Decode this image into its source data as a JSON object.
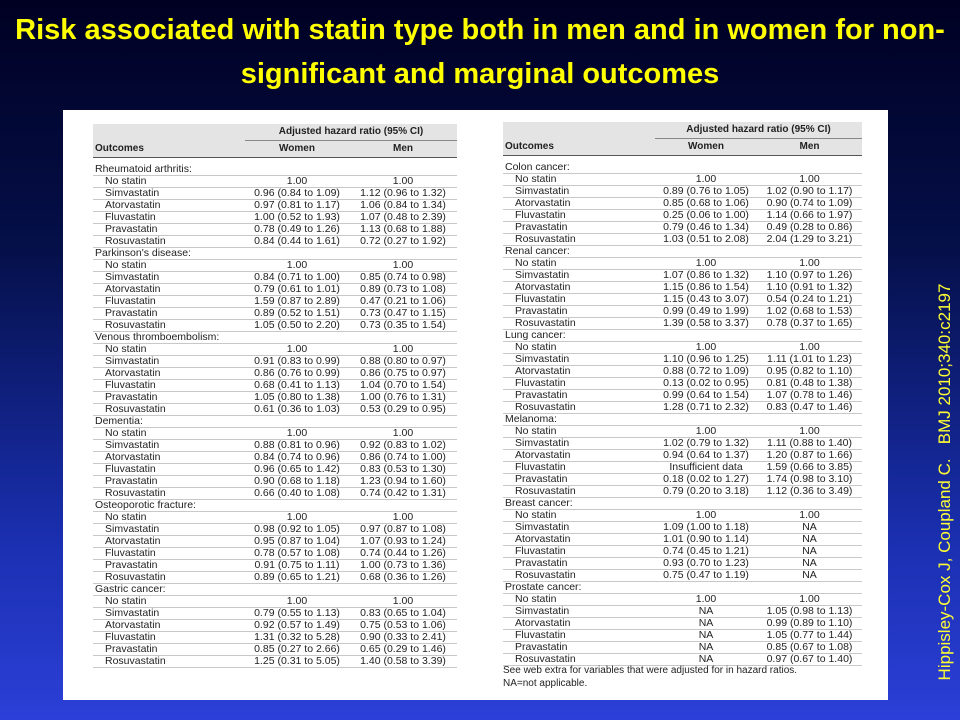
{
  "title": "Risk associated with statin type both in men and in women for non-significant and marginal outcomes",
  "citation": "Hippisley-Cox J, Coupland C.   BMJ 2010;340:c2197",
  "tables": [
    {
      "group_header": "Adjusted hazard ratio (95% CI)",
      "columns": [
        "Outcomes",
        "Women",
        "Men"
      ],
      "sections": [
        {
          "heading": "Rheumatoid arthritis:",
          "rows": [
            [
              "No statin",
              "1.00",
              "1.00"
            ],
            [
              "Simvastatin",
              "0.96 (0.84 to 1.09)",
              "1.12 (0.96 to 1.32)"
            ],
            [
              "Atorvastatin",
              "0.97 (0.81 to 1.17)",
              "1.06 (0.84 to 1.34)"
            ],
            [
              "Fluvastatin",
              "1.00 (0.52 to 1.93)",
              "1.07 (0.48 to 2.39)"
            ],
            [
              "Pravastatin",
              "0.78 (0.49 to 1.26)",
              "1.13 (0.68 to 1.88)"
            ],
            [
              "Rosuvastatin",
              "0.84 (0.44 to 1.61)",
              "0.72 (0.27 to 1.92)"
            ]
          ]
        },
        {
          "heading": "Parkinson's disease:",
          "rows": [
            [
              "No statin",
              "1.00",
              "1.00"
            ],
            [
              "Simvastatin",
              "0.84 (0.71 to 1.00)",
              "0.85 (0.74 to 0.98)"
            ],
            [
              "Atorvastatin",
              "0.79 (0.61 to 1.01)",
              "0.89 (0.73 to 1.08)"
            ],
            [
              "Fluvastatin",
              "1.59 (0.87 to 2.89)",
              "0.47 (0.21 to 1.06)"
            ],
            [
              "Pravastatin",
              "0.89 (0.52 to 1.51)",
              "0.73 (0.47 to 1.15)"
            ],
            [
              "Rosuvastatin",
              "1.05 (0.50 to 2.20)",
              "0.73 (0.35 to 1.54)"
            ]
          ]
        },
        {
          "heading": "Venous thromboembolism:",
          "rows": [
            [
              "No statin",
              "1.00",
              "1.00"
            ],
            [
              "Simvastatin",
              "0.91 (0.83 to 0.99)",
              "0.88 (0.80 to 0.97)"
            ],
            [
              "Atorvastatin",
              "0.86 (0.76 to 0.99)",
              "0.86 (0.75 to 0.97)"
            ],
            [
              "Fluvastatin",
              "0.68 (0.41 to 1.13)",
              "1.04 (0.70 to 1.54)"
            ],
            [
              "Pravastatin",
              "1.05 (0.80 to 1.38)",
              "1.00 (0.76 to 1.31)"
            ],
            [
              "Rosuvastatin",
              "0.61 (0.36 to 1.03)",
              "0.53 (0.29 to 0.95)"
            ]
          ]
        },
        {
          "heading": "Dementia:",
          "rows": [
            [
              "No statin",
              "1.00",
              "1.00"
            ],
            [
              "Simvastatin",
              "0.88 (0.81 to 0.96)",
              "0.92 (0.83 to 1.02)"
            ],
            [
              "Atorvastatin",
              "0.84 (0.74 to 0.96)",
              "0.86 (0.74 to 1.00)"
            ],
            [
              "Fluvastatin",
              "0.96 (0.65 to 1.42)",
              "0.83 (0.53 to 1.30)"
            ],
            [
              "Pravastatin",
              "0.90 (0.68 to 1.18)",
              "1.23 (0.94 to 1.60)"
            ],
            [
              "Rosuvastatin",
              "0.66 (0.40 to 1.08)",
              "0.74 (0.42 to 1.31)"
            ]
          ]
        },
        {
          "heading": "Osteoporotic fracture:",
          "rows": [
            [
              "No statin",
              "1.00",
              "1.00"
            ],
            [
              "Simvastatin",
              "0.98 (0.92 to 1.05)",
              "0.97 (0.87 to 1.08)"
            ],
            [
              "Atorvastatin",
              "0.95 (0.87 to 1.04)",
              "1.07 (0.93 to 1.24)"
            ],
            [
              "Fluvastatin",
              "0.78 (0.57 to 1.08)",
              "0.74 (0.44 to 1.26)"
            ],
            [
              "Pravastatin",
              "0.91 (0.75 to 1.11)",
              "1.00 (0.73 to 1.36)"
            ],
            [
              "Rosuvastatin",
              "0.89 (0.65 to 1.21)",
              "0.68 (0.36 to 1.26)"
            ]
          ]
        },
        {
          "heading": "Gastric cancer:",
          "rows": [
            [
              "No statin",
              "1.00",
              "1.00"
            ],
            [
              "Simvastatin",
              "0.79 (0.55 to 1.13)",
              "0.83 (0.65 to 1.04)"
            ],
            [
              "Atorvastatin",
              "0.92 (0.57 to 1.49)",
              "0.75 (0.53 to 1.06)"
            ],
            [
              "Fluvastatin",
              "1.31 (0.32 to 5.28)",
              "0.90 (0.33 to 2.41)"
            ],
            [
              "Pravastatin",
              "0.85 (0.27 to 2.66)",
              "0.65 (0.29 to 1.46)"
            ],
            [
              "Rosuvastatin",
              "1.25 (0.31 to 5.05)",
              "1.40 (0.58 to 3.39)"
            ]
          ]
        }
      ]
    },
    {
      "group_header": "Adjusted hazard ratio (95% CI)",
      "columns": [
        "Outcomes",
        "Women",
        "Men"
      ],
      "sections": [
        {
          "heading": "Colon cancer:",
          "rows": [
            [
              "No statin",
              "1.00",
              "1.00"
            ],
            [
              "Simvastatin",
              "0.89 (0.76 to 1.05)",
              "1.02 (0.90 to 1.17)"
            ],
            [
              "Atorvastatin",
              "0.85 (0.68 to 1.06)",
              "0.90 (0.74 to 1.09)"
            ],
            [
              "Fluvastatin",
              "0.25 (0.06 to 1.00)",
              "1.14 (0.66 to 1.97)"
            ],
            [
              "Pravastatin",
              "0.79 (0.46 to 1.34)",
              "0.49 (0.28 to 0.86)"
            ],
            [
              "Rosuvastatin",
              "1.03 (0.51 to 2.08)",
              "2.04 (1.29 to 3.21)"
            ]
          ]
        },
        {
          "heading": "Renal cancer:",
          "rows": [
            [
              "No statin",
              "1.00",
              "1.00"
            ],
            [
              "Simvastatin",
              "1.07 (0.86 to 1.32)",
              "1.10 (0.97 to 1.26)"
            ],
            [
              "Atorvastatin",
              "1.15 (0.86 to 1.54)",
              "1.10 (0.91 to 1.32)"
            ],
            [
              "Fluvastatin",
              "1.15 (0.43 to 3.07)",
              "0.54 (0.24 to 1.21)"
            ],
            [
              "Pravastatin",
              "0.99 (0.49 to 1.99)",
              "1.02 (0.68 to 1.53)"
            ],
            [
              "Rosuvastatin",
              "1.39 (0.58 to 3.37)",
              "0.78 (0.37 to 1.65)"
            ]
          ]
        },
        {
          "heading": "Lung cancer:",
          "rows": [
            [
              "No statin",
              "1.00",
              "1.00"
            ],
            [
              "Simvastatin",
              "1.10 (0.96 to 1.25)",
              "1.11 (1.01 to 1.23)"
            ],
            [
              "Atorvastatin",
              "0.88 (0.72 to 1.09)",
              "0.95 (0.82 to 1.10)"
            ],
            [
              "Fluvastatin",
              "0.13 (0.02 to 0.95)",
              "0.81 (0.48 to 1.38)"
            ],
            [
              "Pravastatin",
              "0.99 (0.64 to 1.54)",
              "1.07 (0.78 to 1.46)"
            ],
            [
              "Rosuvastatin",
              "1.28 (0.71 to 2.32)",
              "0.83 (0.47 to 1.46)"
            ]
          ]
        },
        {
          "heading": "Melanoma:",
          "rows": [
            [
              "No statin",
              "1.00",
              "1.00"
            ],
            [
              "Simvastatin",
              "1.02 (0.79 to 1.32)",
              "1.11 (0.88 to 1.40)"
            ],
            [
              "Atorvastatin",
              "0.94 (0.64 to 1.37)",
              "1.20 (0.87 to 1.66)"
            ],
            [
              "Fluvastatin",
              "Insufficient data",
              "1.59 (0.66 to 3.85)"
            ],
            [
              "Pravastatin",
              "0.18 (0.02 to 1.27)",
              "1.74 (0.98 to 3.10)"
            ],
            [
              "Rosuvastatin",
              "0.79 (0.20 to 3.18)",
              "1.12 (0.36 to 3.49)"
            ]
          ]
        },
        {
          "heading": "Breast cancer:",
          "rows": [
            [
              "No statin",
              "1.00",
              "1.00"
            ],
            [
              "Simvastatin",
              "1.09 (1.00 to 1.18)",
              "NA"
            ],
            [
              "Atorvastatin",
              "1.01 (0.90 to 1.14)",
              "NA"
            ],
            [
              "Fluvastatin",
              "0.74 (0.45 to 1.21)",
              "NA"
            ],
            [
              "Pravastatin",
              "0.93 (0.70 to 1.23)",
              "NA"
            ],
            [
              "Rosuvastatin",
              "0.75 (0.47 to 1.19)",
              "NA"
            ]
          ]
        },
        {
          "heading": "Prostate cancer:",
          "rows": [
            [
              "No statin",
              "1.00",
              "1.00"
            ],
            [
              "Simvastatin",
              "NA",
              "1.05 (0.98 to 1.13)"
            ],
            [
              "Atorvastatin",
              "NA",
              "0.99 (0.89 to 1.10)"
            ],
            [
              "Fluvastatin",
              "NA",
              "1.05 (0.77 to 1.44)"
            ],
            [
              "Pravastatin",
              "NA",
              "0.85 (0.67 to 1.08)"
            ],
            [
              "Rosuvastatin",
              "NA",
              "0.97 (0.67 to 1.40)"
            ]
          ]
        }
      ],
      "footnotes": [
        "See web extra for variables that were adjusted for in hazard ratios.",
        "NA=not applicable."
      ]
    }
  ]
}
